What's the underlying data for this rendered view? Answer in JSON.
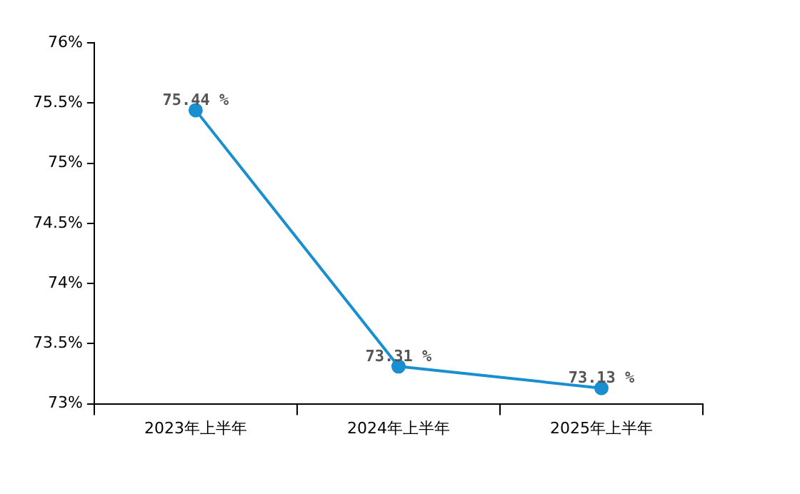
{
  "chart_data": {
    "type": "line",
    "categories": [
      "2023年上半年",
      "2024年上半年",
      "2025年上半年"
    ],
    "series": [
      {
        "color": "#1a8fd0",
        "values": [
          75.44,
          73.31,
          73.13
        ]
      }
    ],
    "value_labels": [
      "75.44 %",
      "73.31 %",
      "73.13 %"
    ],
    "ylim": [
      73,
      76
    ],
    "yticks": [
      {
        "value": 73,
        "label": "73%"
      },
      {
        "value": 73.5,
        "label": "73.5%"
      },
      {
        "value": 74,
        "label": "74%"
      },
      {
        "value": 74.5,
        "label": "74.5%"
      },
      {
        "value": 75,
        "label": "75%"
      },
      {
        "value": 75.5,
        "label": "75.5%"
      },
      {
        "value": 76,
        "label": "76%"
      }
    ],
    "grid": false,
    "legend": false,
    "marker": "circle",
    "line_style": "solid"
  }
}
